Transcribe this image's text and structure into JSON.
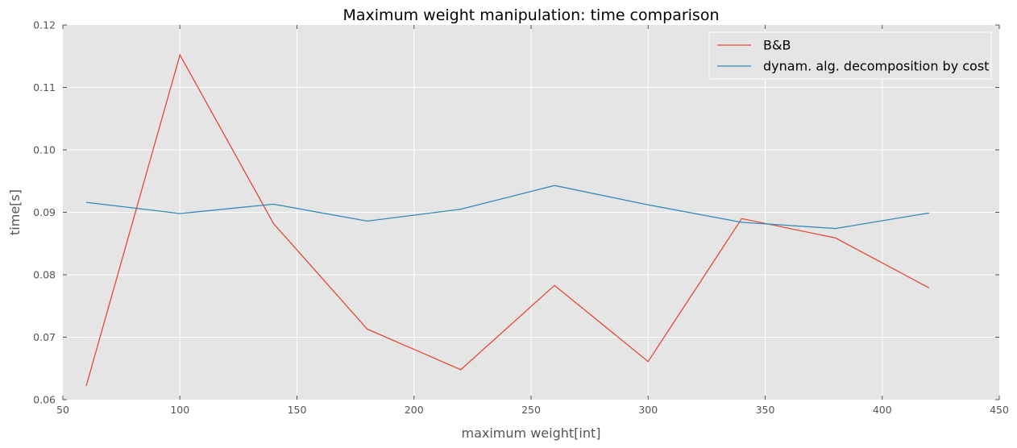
{
  "chart_data": {
    "type": "line",
    "title": "Maximum weight manipulation: time comparison",
    "xlabel": "maximum weight[int]",
    "ylabel": "time[s]",
    "xlim": [
      50,
      450
    ],
    "ylim": [
      0.06,
      0.12
    ],
    "x_ticks": [
      50,
      100,
      150,
      200,
      250,
      300,
      350,
      400,
      450
    ],
    "y_ticks": [
      0.06,
      0.07,
      0.08,
      0.09,
      0.1,
      0.11,
      0.12
    ],
    "x_tick_labels": [
      "50",
      "100",
      "150",
      "200",
      "250",
      "300",
      "350",
      "400",
      "450"
    ],
    "y_tick_labels": [
      "0.06",
      "0.07",
      "0.08",
      "0.09",
      "0.10",
      "0.11",
      "0.12"
    ],
    "grid": true,
    "legend_position": "top-right",
    "x": [
      60,
      100,
      140,
      180,
      220,
      260,
      300,
      340,
      380,
      420
    ],
    "series": [
      {
        "name": "B&B",
        "color": "#E24A33",
        "values": [
          0.0622,
          0.1152,
          0.0882,
          0.0713,
          0.0648,
          0.0783,
          0.0661,
          0.089,
          0.0859,
          0.0779
        ]
      },
      {
        "name": "dynam. alg. decomposition by cost",
        "color": "#348ABD",
        "values": [
          0.0916,
          0.0898,
          0.0913,
          0.0886,
          0.0905,
          0.0943,
          0.0912,
          0.0884,
          0.0874,
          0.0899
        ]
      }
    ]
  }
}
